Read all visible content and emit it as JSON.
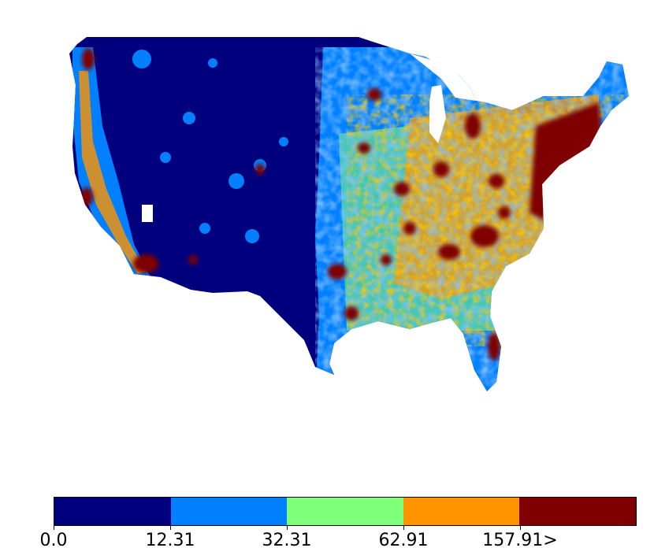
{
  "legend": {
    "bins": [
      {
        "color": "#00007f"
      },
      {
        "color": "#0080ff"
      },
      {
        "color": "#7dff7a"
      },
      {
        "color": "#ff9400"
      },
      {
        "color": "#7f0000"
      }
    ],
    "tick_labels": [
      "0.0",
      "12.31",
      "32.31",
      "62.91",
      "157.91>"
    ]
  },
  "chart_data": {
    "type": "heatmap",
    "value_breaks": [
      0.0,
      12.31,
      32.31,
      62.91,
      157.91
    ],
    "colors": [
      "#00007f",
      "#0080ff",
      "#7dff7a",
      "#ff9400",
      "#7f0000"
    ]
  }
}
